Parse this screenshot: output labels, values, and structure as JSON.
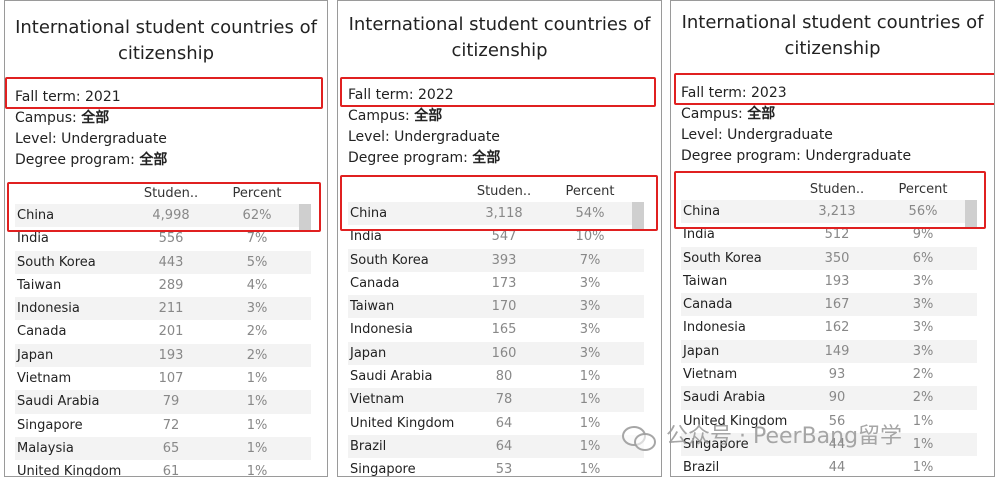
{
  "panels": [
    {
      "title": "International student countries of citizenship",
      "filters": [
        {
          "label": "Fall term: ",
          "value": "2021",
          "cn": false
        },
        {
          "label": "Campus: ",
          "value": "全部",
          "cn": true
        },
        {
          "label": "Level: ",
          "value": "Undergraduate",
          "cn": false
        },
        {
          "label": "Degree program: ",
          "value": "全部",
          "cn": true
        }
      ],
      "columns": {
        "students": "Studen..",
        "percent": "Percent"
      },
      "rows": [
        {
          "name": "China",
          "students": "4,998",
          "percent": "62%"
        },
        {
          "name": "India",
          "students": "556",
          "percent": "7%"
        },
        {
          "name": "South Korea",
          "students": "443",
          "percent": "5%"
        },
        {
          "name": "Taiwan",
          "students": "289",
          "percent": "4%"
        },
        {
          "name": "Indonesia",
          "students": "211",
          "percent": "3%"
        },
        {
          "name": "Canada",
          "students": "201",
          "percent": "2%"
        },
        {
          "name": "Japan",
          "students": "193",
          "percent": "2%"
        },
        {
          "name": "Vietnam",
          "students": "107",
          "percent": "1%"
        },
        {
          "name": "Saudi Arabia",
          "students": "79",
          "percent": "1%"
        },
        {
          "name": "Singapore",
          "students": "72",
          "percent": "1%"
        },
        {
          "name": "Malaysia",
          "students": "65",
          "percent": "1%"
        },
        {
          "name": "United Kingdom",
          "students": "61",
          "percent": "1%"
        }
      ]
    },
    {
      "title": "International student countries of citizenship",
      "filters": [
        {
          "label": "Fall term: ",
          "value": "2022",
          "cn": false
        },
        {
          "label": "Campus: ",
          "value": "全部",
          "cn": true
        },
        {
          "label": "Level: ",
          "value": "Undergraduate",
          "cn": false
        },
        {
          "label": "Degree program: ",
          "value": "全部",
          "cn": true
        }
      ],
      "columns": {
        "students": "Studen..",
        "percent": "Percent"
      },
      "rows": [
        {
          "name": "China",
          "students": "3,118",
          "percent": "54%"
        },
        {
          "name": "India",
          "students": "547",
          "percent": "10%"
        },
        {
          "name": "South Korea",
          "students": "393",
          "percent": "7%"
        },
        {
          "name": "Canada",
          "students": "173",
          "percent": "3%"
        },
        {
          "name": "Taiwan",
          "students": "170",
          "percent": "3%"
        },
        {
          "name": "Indonesia",
          "students": "165",
          "percent": "3%"
        },
        {
          "name": "Japan",
          "students": "160",
          "percent": "3%"
        },
        {
          "name": "Saudi Arabia",
          "students": "80",
          "percent": "1%"
        },
        {
          "name": "Vietnam",
          "students": "78",
          "percent": "1%"
        },
        {
          "name": "United Kingdom",
          "students": "64",
          "percent": "1%"
        },
        {
          "name": "Brazil",
          "students": "64",
          "percent": "1%"
        },
        {
          "name": "Singapore",
          "students": "53",
          "percent": "1%"
        }
      ]
    },
    {
      "title": "International student countries of citizenship",
      "filters": [
        {
          "label": "Fall term: ",
          "value": "2023",
          "cn": false
        },
        {
          "label": "Campus: ",
          "value": "全部",
          "cn": true
        },
        {
          "label": "Level: ",
          "value": "Undergraduate",
          "cn": false
        },
        {
          "label": "Degree program: ",
          "value": "Undergraduate",
          "cn": false
        }
      ],
      "columns": {
        "students": "Studen..",
        "percent": "Percent"
      },
      "rows": [
        {
          "name": "China",
          "students": "3,213",
          "percent": "56%"
        },
        {
          "name": "India",
          "students": "512",
          "percent": "9%"
        },
        {
          "name": "South Korea",
          "students": "350",
          "percent": "6%"
        },
        {
          "name": "Taiwan",
          "students": "193",
          "percent": "3%"
        },
        {
          "name": "Canada",
          "students": "167",
          "percent": "3%"
        },
        {
          "name": "Indonesia",
          "students": "162",
          "percent": "3%"
        },
        {
          "name": "Japan",
          "students": "149",
          "percent": "3%"
        },
        {
          "name": "Vietnam",
          "students": "93",
          "percent": "2%"
        },
        {
          "name": "Saudi Arabia",
          "students": "90",
          "percent": "2%"
        },
        {
          "name": "United Kingdom",
          "students": "56",
          "percent": "1%"
        },
        {
          "name": "Singapore",
          "students": "44",
          "percent": "1%"
        },
        {
          "name": "Brazil",
          "students": "44",
          "percent": "1%"
        }
      ]
    }
  ],
  "watermark": {
    "text": "公众号 · PeerBang留学",
    "icon": "wechat-icon"
  },
  "colors": {
    "highlight": "#e02020",
    "stripe": "#f3f3f3",
    "value_text": "#888888"
  }
}
